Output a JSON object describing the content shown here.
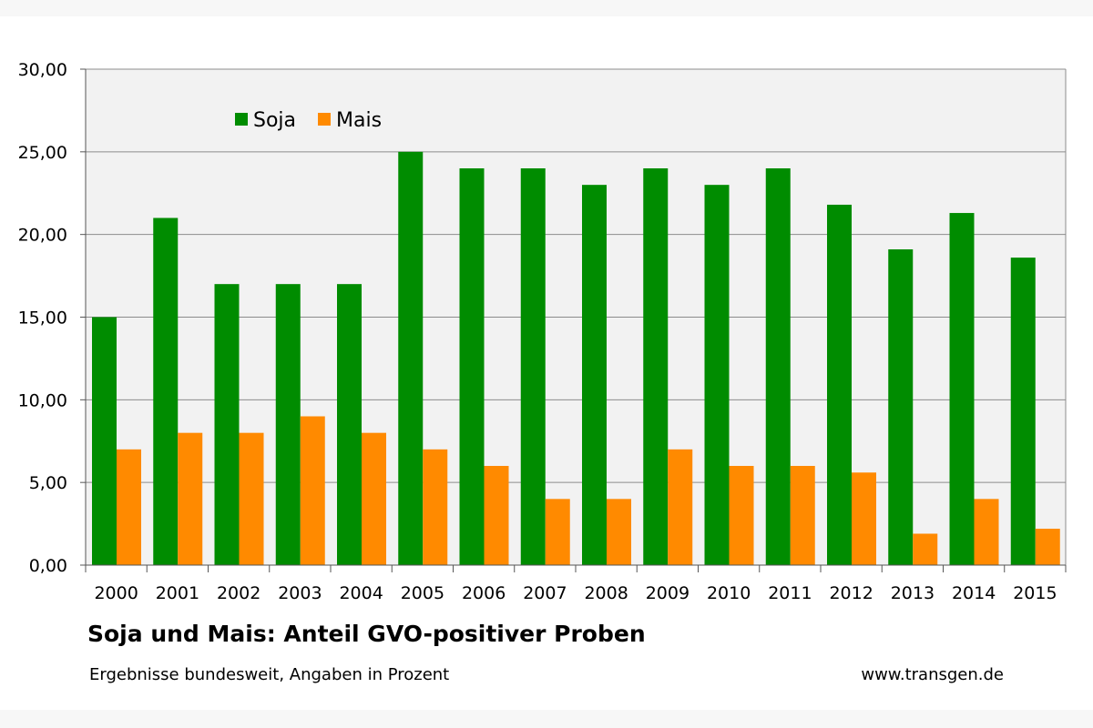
{
  "chart_data": {
    "type": "bar",
    "title": "Soja und Mais: Anteil GVO-positiver Proben",
    "subtitle": "Ergebnisse bundesweit, Angaben in Prozent",
    "source": "www.transgen.de",
    "categories": [
      "2000",
      "2001",
      "2002",
      "2003",
      "2004",
      "2005",
      "2006",
      "2007",
      "2008",
      "2009",
      "2010",
      "2011",
      "2012",
      "2013",
      "2014",
      "2015"
    ],
    "series": [
      {
        "name": "Soja",
        "color": "#008c00",
        "values": [
          15,
          21,
          17,
          17,
          17,
          25,
          24,
          24,
          23,
          24,
          23,
          24,
          21.8,
          19.1,
          21.3,
          18.6
        ]
      },
      {
        "name": "Mais",
        "color": "#ff8a00",
        "values": [
          7,
          8,
          8,
          9,
          8,
          7,
          6,
          4,
          4,
          7,
          6,
          6,
          5.6,
          1.9,
          4,
          2.2
        ]
      }
    ],
    "ylim": [
      0,
      30
    ],
    "yticks": [
      "0,00",
      "5,00",
      "10,00",
      "15,00",
      "20,00",
      "25,00",
      "30,00"
    ],
    "grid": true,
    "legend_position": "top-left"
  }
}
